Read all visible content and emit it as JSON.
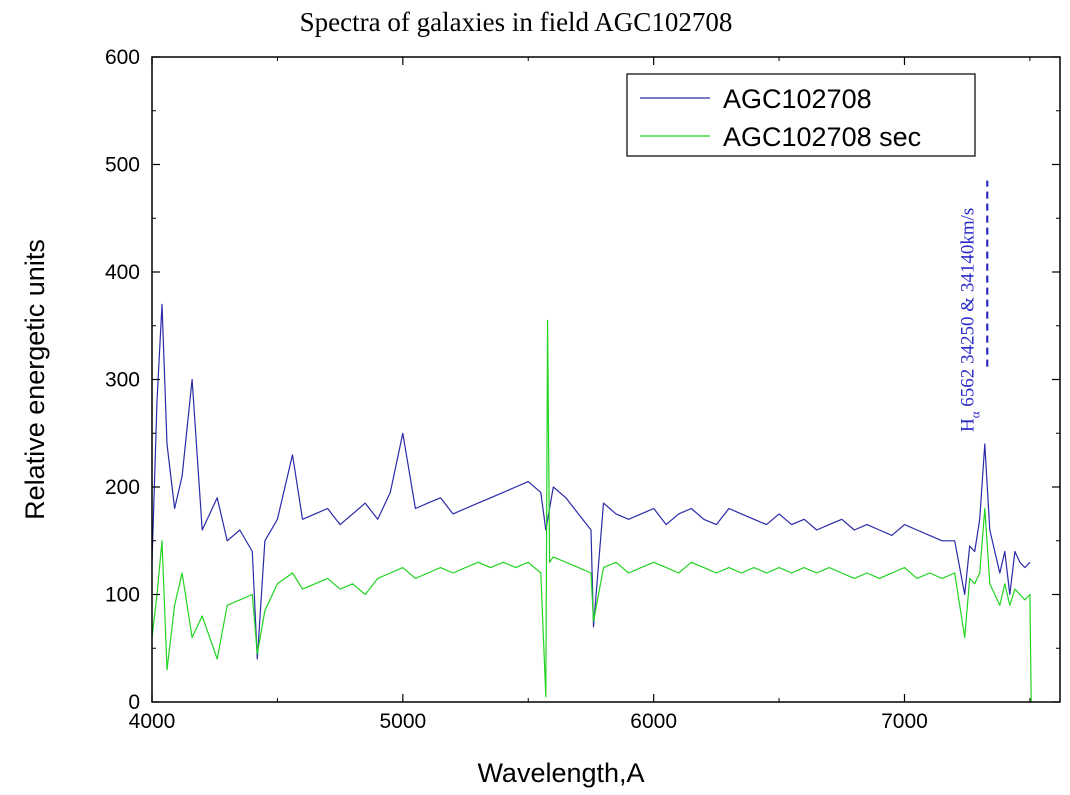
{
  "chart_data": {
    "type": "line",
    "title": "Spectra of galaxies in field AGC102708",
    "xlabel": "Wavelength,A",
    "ylabel": "Relative energetic units",
    "xlim": [
      4000,
      7620
    ],
    "ylim": [
      0,
      600
    ],
    "x_ticks": [
      4000,
      5000,
      6000,
      7000
    ],
    "y_ticks": [
      0,
      100,
      200,
      300,
      400,
      500,
      600
    ],
    "grid": false,
    "legend_position": "top-right",
    "series": [
      {
        "name": "AGC102708",
        "color": "#2a2aa8",
        "x": [
          4000,
          4020,
          4040,
          4060,
          4090,
          4120,
          4160,
          4200,
          4260,
          4300,
          4350,
          4400,
          4420,
          4450,
          4500,
          4560,
          4600,
          4650,
          4700,
          4750,
          4800,
          4850,
          4900,
          4950,
          5000,
          5050,
          5100,
          5150,
          5200,
          5250,
          5300,
          5350,
          5400,
          5450,
          5500,
          5550,
          5570,
          5600,
          5650,
          5700,
          5750,
          5760,
          5800,
          5850,
          5900,
          5950,
          6000,
          6050,
          6100,
          6150,
          6200,
          6250,
          6300,
          6350,
          6400,
          6450,
          6500,
          6550,
          6600,
          6650,
          6700,
          6750,
          6800,
          6850,
          6900,
          6950,
          7000,
          7050,
          7100,
          7150,
          7200,
          7240,
          7260,
          7280,
          7300,
          7320,
          7340,
          7360,
          7380,
          7400,
          7420,
          7440,
          7460,
          7480,
          7500
        ],
        "values": [
          130,
          280,
          370,
          240,
          180,
          210,
          300,
          160,
          190,
          150,
          160,
          140,
          40,
          150,
          170,
          230,
          170,
          175,
          180,
          165,
          175,
          185,
          170,
          195,
          250,
          180,
          185,
          190,
          175,
          180,
          185,
          190,
          195,
          200,
          205,
          195,
          160,
          200,
          190,
          175,
          160,
          70,
          185,
          175,
          170,
          175,
          180,
          165,
          175,
          180,
          170,
          165,
          180,
          175,
          170,
          165,
          175,
          165,
          170,
          160,
          165,
          170,
          160,
          165,
          160,
          155,
          165,
          160,
          155,
          150,
          150,
          100,
          145,
          140,
          170,
          240,
          160,
          140,
          120,
          140,
          100,
          140,
          130,
          125,
          130
        ]
      },
      {
        "name": "AGC102708 sec",
        "color": "#22d422",
        "x": [
          4000,
          4020,
          4040,
          4060,
          4090,
          4120,
          4160,
          4200,
          4260,
          4300,
          4350,
          4400,
          4420,
          4450,
          4500,
          4560,
          4600,
          4650,
          4700,
          4750,
          4800,
          4850,
          4900,
          4950,
          5000,
          5050,
          5100,
          5150,
          5200,
          5250,
          5300,
          5350,
          5400,
          5450,
          5500,
          5550,
          5570,
          5577,
          5585,
          5600,
          5650,
          5700,
          5750,
          5760,
          5800,
          5850,
          5900,
          5950,
          6000,
          6050,
          6100,
          6150,
          6200,
          6250,
          6300,
          6350,
          6400,
          6450,
          6500,
          6550,
          6600,
          6650,
          6700,
          6750,
          6800,
          6850,
          6900,
          6950,
          7000,
          7050,
          7100,
          7150,
          7200,
          7240,
          7260,
          7280,
          7300,
          7320,
          7340,
          7360,
          7380,
          7400,
          7420,
          7440,
          7460,
          7480,
          7500,
          7505
        ],
        "values": [
          60,
          100,
          150,
          30,
          90,
          120,
          60,
          80,
          40,
          90,
          95,
          100,
          45,
          85,
          110,
          120,
          105,
          110,
          115,
          105,
          110,
          100,
          115,
          120,
          125,
          115,
          120,
          125,
          120,
          125,
          130,
          125,
          130,
          125,
          130,
          120,
          5,
          355,
          130,
          135,
          130,
          125,
          120,
          75,
          125,
          130,
          120,
          125,
          130,
          125,
          120,
          130,
          125,
          120,
          125,
          120,
          125,
          120,
          125,
          120,
          125,
          120,
          125,
          120,
          115,
          120,
          115,
          120,
          125,
          115,
          120,
          115,
          120,
          60,
          115,
          110,
          120,
          180,
          110,
          100,
          90,
          110,
          90,
          105,
          100,
          95,
          100,
          0
        ]
      }
    ],
    "annotation": {
      "label_main": "H",
      "label_sub": "α",
      "label_rest": " 6562 34250 & 34140km/s",
      "color": "#2a2ac8",
      "x": 7330,
      "y_bottom": 312,
      "y_top": 485
    }
  }
}
